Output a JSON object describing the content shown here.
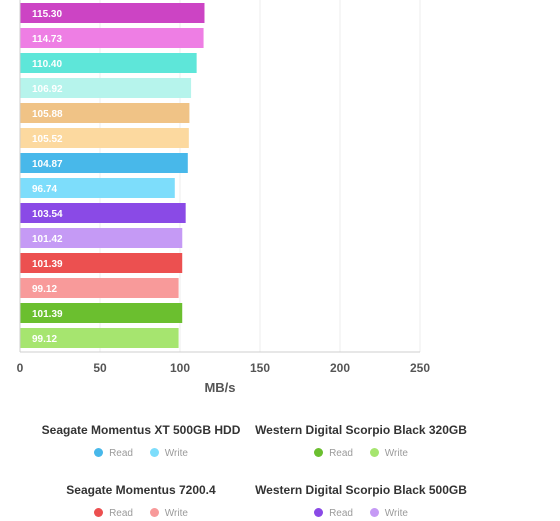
{
  "chart_data": {
    "type": "bar",
    "orientation": "horizontal",
    "xlabel": "MB/s",
    "xlim": [
      0,
      250
    ],
    "xticks": [
      0,
      50,
      100,
      150,
      200,
      250
    ],
    "grid": true,
    "groups": [
      {
        "read": 115.3,
        "write": 114.73,
        "read_color": "#cc44c4",
        "write_color": "#ee7ee4"
      },
      {
        "read": 110.4,
        "write": 106.92,
        "read_color": "#5ee6d9",
        "write_color": "#b6f4ec"
      },
      {
        "read": 105.88,
        "write": 105.52,
        "read_color": "#f0c386",
        "write_color": "#fcd99f"
      },
      {
        "read": 104.87,
        "write": 96.74,
        "read_color": "#48b8ea",
        "write_color": "#7dddfb"
      },
      {
        "read": 103.54,
        "write": 101.42,
        "read_color": "#8a4ae6",
        "write_color": "#c59af5"
      },
      {
        "read": 101.39,
        "write": 99.12,
        "read_color": "#ec5050",
        "write_color": "#f89a9a"
      },
      {
        "read": 101.39,
        "write": 99.12,
        "read_color": "#6bbf2f",
        "write_color": "#a6e56f"
      }
    ]
  },
  "legend": {
    "read_label": "Read",
    "write_label": "Write",
    "entries": [
      {
        "name": "Seagate Momentus XT 500GB HDD",
        "read_color": "#48b8ea",
        "write_color": "#7dddfb"
      },
      {
        "name": "Western Digital Scorpio Black 320GB",
        "read_color": "#6bbf2f",
        "write_color": "#a6e56f"
      },
      {
        "name": "Seagate Momentus 7200.4",
        "read_color": "#ec5050",
        "write_color": "#f89a9a"
      },
      {
        "name": "Western Digital Scorpio Black 500GB",
        "read_color": "#8a4ae6",
        "write_color": "#c59af5"
      }
    ]
  }
}
